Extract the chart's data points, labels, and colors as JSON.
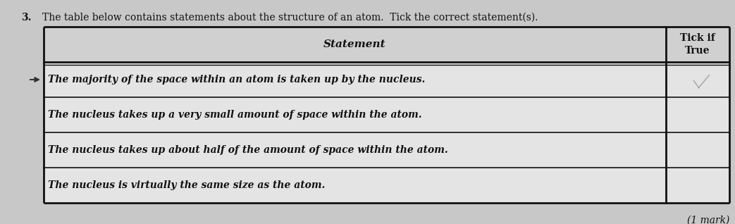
{
  "question_number": "3.",
  "question_text": "The table below contains statements about the structure of an atom.  Tick the correct statement(s).",
  "col1_header": "Statement",
  "col2_header": "Tick if\nTrue",
  "rows": [
    "The majority of the space within an atom is taken up by the nucleus.",
    "The nucleus takes up a very small amount of space within the atom.",
    "The nucleus takes up about half of the amount of space within the atom.",
    "The nucleus is virtually the same size as the atom."
  ],
  "mark_text": "(1 mark)",
  "fig_bg": "#c8c8c8",
  "table_area_bg": "#e8e8e8",
  "header_bg": "#d4d4d4",
  "row_bg": "#e8e8e8",
  "border_color": "#111111",
  "text_color": "#111111",
  "fig_width": 10.43,
  "fig_height": 3.18,
  "dpi": 100
}
